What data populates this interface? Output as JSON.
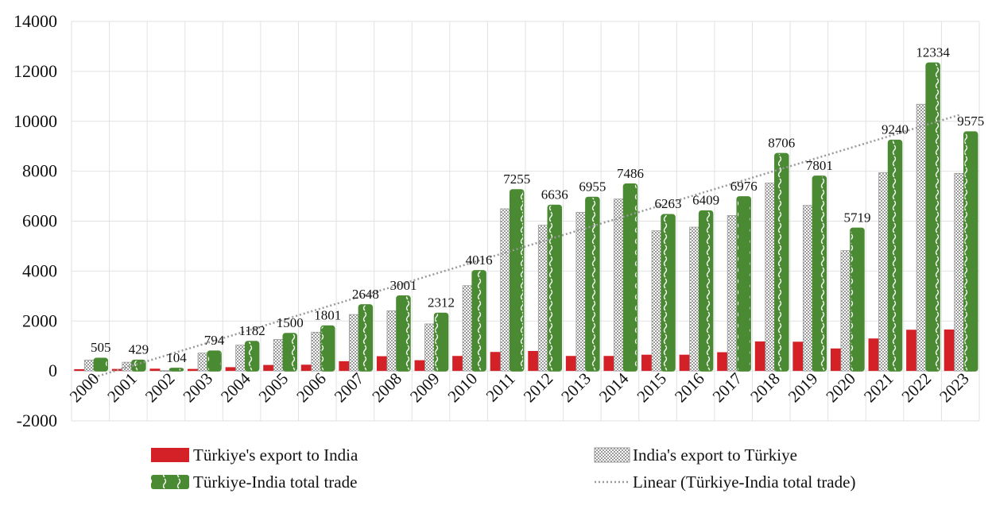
{
  "chart_data": {
    "type": "bar",
    "title": "",
    "xlabel": "",
    "ylabel": "",
    "ylim": [
      -2000,
      14000
    ],
    "yticks": [
      -2000,
      0,
      2000,
      4000,
      6000,
      8000,
      10000,
      12000,
      14000
    ],
    "grid": true,
    "legend_position": "bottom",
    "categories": [
      "2000",
      "2001",
      "2002",
      "2003",
      "2004",
      "2005",
      "2006",
      "2007",
      "2008",
      "2009",
      "2010",
      "2011",
      "2012",
      "2013",
      "2014",
      "2015",
      "2016",
      "2017",
      "2018",
      "2019",
      "2020",
      "2021",
      "2022",
      "2023"
    ],
    "series": [
      {
        "name": "Türkiye's export to India",
        "color": "#d42027",
        "pattern": "solid",
        "values": [
          70,
          80,
          90,
          80,
          150,
          240,
          250,
          390,
          590,
          430,
          600,
          760,
          800,
          600,
          600,
          650,
          650,
          750,
          1180,
          1170,
          900,
          1300,
          1650,
          1660
        ]
      },
      {
        "name": "India's export to Türkiye",
        "color": "#b8b8b8",
        "pattern": "checker",
        "values": [
          435,
          349,
          14,
          714,
          1032,
          1260,
          1551,
          2258,
          2411,
          1882,
          3416,
          6495,
          5836,
          6355,
          6886,
          5613,
          5759,
          6226,
          7526,
          6631,
          4819,
          7940,
          10684,
          7915
        ]
      },
      {
        "name": "Türkiye-India total trade",
        "color": "#4a8a32",
        "pattern": "wave",
        "data_labels": true,
        "values": [
          505,
          429,
          104,
          794,
          1182,
          1500,
          1801,
          2648,
          3001,
          2312,
          4016,
          7255,
          6636,
          6955,
          7486,
          6263,
          6409,
          6976,
          8706,
          7801,
          5719,
          9240,
          12334,
          9575
        ]
      }
    ],
    "trendline": {
      "name": "Linear (Türkiye-India total trade)",
      "type": "linear",
      "of_series": "Türkiye-India total trade",
      "color": "#999999",
      "style": "dotted"
    }
  }
}
